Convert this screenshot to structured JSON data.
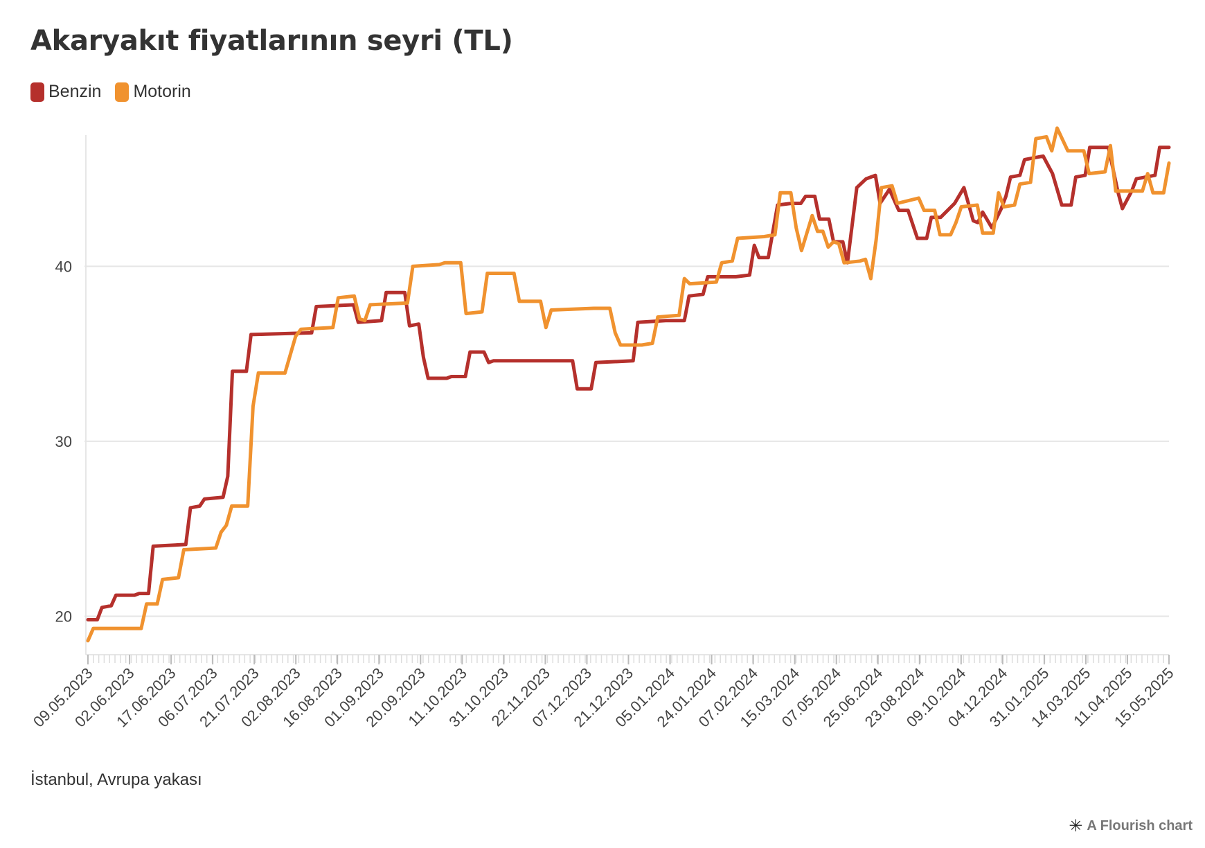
{
  "title": "Akaryakıt fiyatlarının seyri (TL)",
  "caption": "İstanbul, Avrupa yakası",
  "credit": {
    "text": "A Flourish chart",
    "icon": "flourish-asterisk-icon"
  },
  "legend": [
    {
      "name": "Benzin",
      "color": "#b5302c"
    },
    {
      "name": "Motorin",
      "color": "#f0922f"
    }
  ],
  "chart_data": {
    "type": "line",
    "ylim": [
      17.8,
      47.5
    ],
    "yticks": [
      20,
      30,
      40
    ],
    "grid": true,
    "legend_position": "top-left",
    "categories": [
      "09.05.2023",
      "02.06.2023",
      "17.06.2023",
      "06.07.2023",
      "21.07.2023",
      "02.08.2023",
      "16.08.2023",
      "01.09.2023",
      "20.09.2023",
      "11.10.2023",
      "31.10.2023",
      "22.11.2023",
      "07.12.2023",
      "21.12.2023",
      "05.01.2024",
      "24.01.2024",
      "07.02.2024",
      "15.03.2024",
      "07.05.2024",
      "25.06.2024",
      "23.08.2024",
      "09.10.2024",
      "04.12.2024",
      "31.01.2025",
      "14.03.2025",
      "11.04.2025",
      "15.05.2025"
    ],
    "n_points": 261,
    "series": [
      {
        "name": "Benzin",
        "color": "#b5302c",
        "points": [
          [
            0,
            19.8
          ],
          [
            2,
            19.8
          ],
          [
            3,
            20.5
          ],
          [
            5,
            20.6
          ],
          [
            6,
            21.2
          ],
          [
            10,
            21.2
          ],
          [
            11,
            21.3
          ],
          [
            13,
            21.3
          ],
          [
            14,
            24.0
          ],
          [
            21,
            24.1
          ],
          [
            22,
            26.2
          ],
          [
            24,
            26.3
          ],
          [
            25,
            26.7
          ],
          [
            29,
            26.8
          ],
          [
            30,
            28.0
          ],
          [
            31,
            34.0
          ],
          [
            34,
            34.0
          ],
          [
            35,
            36.1
          ],
          [
            48,
            36.2
          ],
          [
            49,
            37.7
          ],
          [
            57,
            37.8
          ],
          [
            58,
            36.8
          ],
          [
            63,
            36.9
          ],
          [
            64,
            38.5
          ],
          [
            68,
            38.5
          ],
          [
            69,
            36.6
          ],
          [
            71,
            36.7
          ],
          [
            72,
            34.8
          ],
          [
            73,
            33.6
          ],
          [
            77,
            33.6
          ],
          [
            78,
            33.7
          ],
          [
            81,
            33.7
          ],
          [
            82,
            35.1
          ],
          [
            85,
            35.1
          ],
          [
            86,
            34.5
          ],
          [
            87,
            34.6
          ],
          [
            104,
            34.6
          ],
          [
            105,
            33.0
          ],
          [
            108,
            33.0
          ],
          [
            109,
            34.5
          ],
          [
            117,
            34.6
          ],
          [
            118,
            36.8
          ],
          [
            124,
            36.9
          ],
          [
            128,
            36.9
          ],
          [
            129,
            38.3
          ],
          [
            132,
            38.4
          ],
          [
            133,
            39.4
          ],
          [
            139,
            39.4
          ],
          [
            142,
            39.5
          ],
          [
            143,
            41.2
          ],
          [
            144,
            40.5
          ],
          [
            146,
            40.5
          ],
          [
            148,
            43.5
          ],
          [
            151,
            43.6
          ],
          [
            153,
            43.6
          ],
          [
            154,
            44.0
          ],
          [
            156,
            44.0
          ],
          [
            157,
            42.7
          ],
          [
            159,
            42.7
          ],
          [
            160,
            41.4
          ],
          [
            162,
            41.4
          ],
          [
            163,
            40.2
          ],
          [
            165,
            44.5
          ],
          [
            167,
            45.0
          ],
          [
            169,
            45.2
          ],
          [
            170,
            43.6
          ],
          [
            172,
            44.4
          ],
          [
            174,
            43.2
          ],
          [
            176,
            43.2
          ],
          [
            178,
            41.6
          ],
          [
            180,
            41.6
          ],
          [
            181,
            42.8
          ],
          [
            183,
            42.8
          ],
          [
            186,
            43.6
          ],
          [
            188,
            44.5
          ],
          [
            190,
            42.6
          ],
          [
            191,
            42.5
          ],
          [
            192,
            43.1
          ],
          [
            194,
            42.2
          ],
          [
            196,
            43.3
          ],
          [
            197,
            44.0
          ],
          [
            198,
            45.1
          ],
          [
            200,
            45.2
          ],
          [
            201,
            46.1
          ],
          [
            203,
            46.2
          ],
          [
            205,
            46.3
          ],
          [
            207,
            45.3
          ],
          [
            209,
            43.5
          ],
          [
            211,
            43.5
          ],
          [
            212,
            45.1
          ],
          [
            214,
            45.2
          ],
          [
            215,
            46.8
          ],
          [
            219,
            46.8
          ],
          [
            221,
            44.3
          ],
          [
            222,
            43.3
          ],
          [
            224,
            44.3
          ],
          [
            225,
            45.0
          ],
          [
            229,
            45.2
          ],
          [
            230,
            46.8
          ],
          [
            232,
            46.8
          ]
        ]
      },
      {
        "name": "Motorin",
        "color": "#f0922f",
        "points": [
          [
            0,
            18.6
          ],
          [
            1,
            19.3
          ],
          [
            10,
            19.3
          ],
          [
            11,
            20.7
          ],
          [
            13,
            20.7
          ],
          [
            14,
            22.1
          ],
          [
            17,
            22.2
          ],
          [
            18,
            23.8
          ],
          [
            24,
            23.9
          ],
          [
            25,
            24.8
          ],
          [
            26,
            25.2
          ],
          [
            27,
            26.3
          ],
          [
            30,
            26.3
          ],
          [
            31,
            32.0
          ],
          [
            32,
            33.9
          ],
          [
            37,
            33.9
          ],
          [
            39,
            36.0
          ],
          [
            40,
            36.4
          ],
          [
            46,
            36.5
          ],
          [
            47,
            38.2
          ],
          [
            50,
            38.3
          ],
          [
            51,
            37.0
          ],
          [
            52,
            36.9
          ],
          [
            53,
            37.8
          ],
          [
            60,
            37.9
          ],
          [
            61,
            40.0
          ],
          [
            66,
            40.1
          ],
          [
            67,
            40.2
          ],
          [
            70,
            40.2
          ],
          [
            71,
            37.3
          ],
          [
            74,
            37.4
          ],
          [
            75,
            39.6
          ],
          [
            80,
            39.6
          ],
          [
            81,
            38.0
          ],
          [
            85,
            38.0
          ],
          [
            86,
            36.5
          ],
          [
            87,
            37.5
          ],
          [
            95,
            37.6
          ],
          [
            98,
            37.6
          ],
          [
            99,
            36.2
          ],
          [
            100,
            35.5
          ],
          [
            104,
            35.5
          ],
          [
            106,
            35.6
          ],
          [
            107,
            37.1
          ],
          [
            111,
            37.2
          ],
          [
            112,
            39.3
          ],
          [
            113,
            39.0
          ],
          [
            118,
            39.1
          ],
          [
            119,
            40.2
          ],
          [
            121,
            40.3
          ],
          [
            122,
            41.6
          ],
          [
            127,
            41.7
          ],
          [
            129,
            41.8
          ],
          [
            130,
            44.2
          ],
          [
            132,
            44.2
          ],
          [
            133,
            42.2
          ],
          [
            134,
            40.9
          ],
          [
            136,
            42.9
          ],
          [
            137,
            42.0
          ],
          [
            138,
            42.0
          ],
          [
            139,
            41.1
          ],
          [
            140,
            41.4
          ],
          [
            141,
            41.3
          ],
          [
            142,
            40.2
          ],
          [
            145,
            40.3
          ],
          [
            146,
            40.4
          ],
          [
            147,
            39.3
          ],
          [
            148,
            41.5
          ],
          [
            149,
            44.5
          ],
          [
            151,
            44.6
          ],
          [
            152,
            43.6
          ],
          [
            156,
            43.9
          ],
          [
            157,
            43.2
          ],
          [
            159,
            43.2
          ],
          [
            160,
            41.8
          ],
          [
            162,
            41.8
          ],
          [
            163,
            42.5
          ],
          [
            164,
            43.4
          ],
          [
            167,
            43.5
          ],
          [
            168,
            41.9
          ],
          [
            170,
            41.9
          ],
          [
            171,
            44.2
          ],
          [
            172,
            43.4
          ],
          [
            174,
            43.5
          ],
          [
            175,
            44.7
          ],
          [
            177,
            44.8
          ],
          [
            178,
            47.3
          ],
          [
            180,
            47.4
          ],
          [
            181,
            46.6
          ],
          [
            182,
            47.9
          ],
          [
            184,
            46.6
          ],
          [
            187,
            46.6
          ],
          [
            188,
            45.3
          ],
          [
            191,
            45.4
          ],
          [
            192,
            46.9
          ],
          [
            193,
            44.3
          ],
          [
            198,
            44.3
          ],
          [
            199,
            45.3
          ],
          [
            200,
            44.2
          ],
          [
            202,
            44.2
          ],
          [
            203,
            45.9
          ]
        ]
      }
    ],
    "x_scale_note": "series point indices map onto the category axis via the script (Benzin 0-232, Motorin 0-203 span the same axis range)"
  }
}
